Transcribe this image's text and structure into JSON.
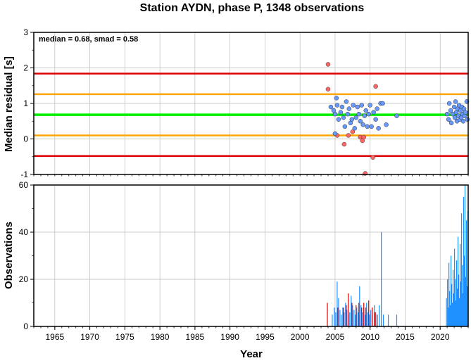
{
  "title": "Station AYDN, phase P, 1348 observations",
  "colors": {
    "median_line": "#00ee00",
    "inner_band": "#ffa500",
    "outer_band": "#dd0000",
    "point_inside": "#6699ff",
    "point_outside": "#ff6666",
    "bar_inside": "#1e90ff",
    "bar_outside": "#dd0000",
    "grid": "#bbbbbb"
  },
  "chart_data": [
    {
      "type": "scatter",
      "title": "Station AYDN, phase P, 1348 observations",
      "annotation": "median = 0.68, smad = 0.58",
      "xlabel": "",
      "ylabel": "Median residual [s]",
      "xlim": [
        1962,
        2024
      ],
      "ylim": [
        -1,
        3
      ],
      "yticks": [
        "-1",
        "0",
        "1",
        "2",
        "3"
      ],
      "grid": true,
      "lines": {
        "median": 0.68,
        "inner_lower": 0.1,
        "inner_upper": 1.26,
        "outer_lower": -0.48,
        "outer_upper": 1.84
      },
      "points_inside": [
        [
          2004.4,
          0.9
        ],
        [
          2004.8,
          0.8
        ],
        [
          2005.0,
          0.7
        ],
        [
          2005.2,
          1.15
        ],
        [
          2005.3,
          0.95
        ],
        [
          2005.5,
          0.55
        ],
        [
          2005.8,
          0.75
        ],
        [
          2006.0,
          0.9
        ],
        [
          2006.2,
          0.6
        ],
        [
          2006.4,
          0.35
        ],
        [
          2006.6,
          1.05
        ],
        [
          2006.8,
          0.7
        ],
        [
          2007.0,
          0.85
        ],
        [
          2007.2,
          0.45
        ],
        [
          2007.4,
          0.55
        ],
        [
          2007.6,
          0.95
        ],
        [
          2007.8,
          0.3
        ],
        [
          2008.0,
          0.6
        ],
        [
          2008.2,
          0.9
        ],
        [
          2008.4,
          0.7
        ],
        [
          2008.6,
          0.5
        ],
        [
          2008.8,
          0.95
        ],
        [
          2009.0,
          0.4
        ],
        [
          2009.2,
          0.65
        ],
        [
          2009.4,
          0.8
        ],
        [
          2009.6,
          0.35
        ],
        [
          2009.8,
          0.7
        ],
        [
          2010.0,
          0.95
        ],
        [
          2010.2,
          0.35
        ],
        [
          2010.5,
          0.75
        ],
        [
          2010.8,
          0.55
        ],
        [
          2011.0,
          0.85
        ],
        [
          2011.2,
          0.3
        ],
        [
          2011.5,
          1.0
        ],
        [
          2011.8,
          1.0
        ],
        [
          2012.3,
          0.4
        ],
        [
          2013.8,
          0.65
        ],
        [
          2005.0,
          0.15
        ],
        [
          2021.0,
          0.7
        ],
        [
          2021.2,
          0.55
        ],
        [
          2021.3,
          1.0
        ],
        [
          2021.5,
          0.8
        ],
        [
          2021.6,
          0.45
        ],
        [
          2021.8,
          0.7
        ],
        [
          2022.0,
          0.9
        ],
        [
          2022.1,
          0.6
        ],
        [
          2022.2,
          1.05
        ],
        [
          2022.3,
          0.75
        ],
        [
          2022.4,
          0.5
        ],
        [
          2022.5,
          0.85
        ],
        [
          2022.6,
          0.65
        ],
        [
          2022.7,
          0.95
        ],
        [
          2022.8,
          0.55
        ],
        [
          2022.9,
          0.8
        ],
        [
          2023.0,
          0.6
        ],
        [
          2023.1,
          0.9
        ],
        [
          2023.2,
          0.7
        ],
        [
          2023.3,
          0.5
        ],
        [
          2023.4,
          0.85
        ],
        [
          2023.5,
          0.65
        ],
        [
          2023.6,
          0.75
        ],
        [
          2023.8,
          1.05
        ],
        [
          2023.9,
          0.55
        ]
      ],
      "points_outside": [
        [
          2004.0,
          2.1
        ],
        [
          2004.0,
          1.4
        ],
        [
          2005.3,
          0.1
        ],
        [
          2006.3,
          -0.15
        ],
        [
          2006.9,
          0.1
        ],
        [
          2007.5,
          0.2
        ],
        [
          2008.6,
          0.05
        ],
        [
          2008.9,
          -0.05
        ],
        [
          2009.1,
          0.05
        ],
        [
          2009.3,
          -0.97
        ],
        [
          2010.4,
          -0.52
        ],
        [
          2010.8,
          1.48
        ]
      ]
    },
    {
      "type": "bar",
      "xlabel": "Year",
      "ylabel": "Observations",
      "xlim": [
        1962,
        2024
      ],
      "ylim": [
        0,
        60
      ],
      "xticks": [
        "1965",
        "1970",
        "1975",
        "1980",
        "1985",
        "1990",
        "1995",
        "2000",
        "2005",
        "2010",
        "2015",
        "2020"
      ],
      "yticks": [
        "0",
        "20",
        "40",
        "60"
      ],
      "grid": true,
      "bars_inside": [
        [
          2004.6,
          5
        ],
        [
          2004.9,
          8
        ],
        [
          2005.1,
          6
        ],
        [
          2005.3,
          19
        ],
        [
          2005.5,
          12
        ],
        [
          2005.7,
          7
        ],
        [
          2005.9,
          5
        ],
        [
          2006.1,
          8
        ],
        [
          2006.3,
          6
        ],
        [
          2006.5,
          10
        ],
        [
          2006.7,
          7
        ],
        [
          2006.9,
          5
        ],
        [
          2007.1,
          6
        ],
        [
          2007.3,
          13
        ],
        [
          2007.5,
          9
        ],
        [
          2007.7,
          7
        ],
        [
          2007.9,
          5
        ],
        [
          2008.1,
          8
        ],
        [
          2008.3,
          6
        ],
        [
          2008.5,
          17
        ],
        [
          2008.7,
          9
        ],
        [
          2008.9,
          6
        ],
        [
          2009.1,
          8
        ],
        [
          2009.3,
          5
        ],
        [
          2009.5,
          10
        ],
        [
          2009.7,
          6
        ],
        [
          2009.9,
          5
        ],
        [
          2010.1,
          7
        ],
        [
          2010.3,
          5
        ],
        [
          2010.6,
          9
        ],
        [
          2010.8,
          6
        ],
        [
          2011.0,
          5
        ],
        [
          2011.3,
          9
        ],
        [
          2011.6,
          40
        ],
        [
          2011.9,
          5
        ],
        [
          2012.6,
          5
        ],
        [
          2013.8,
          5
        ],
        [
          2020.9,
          12
        ],
        [
          2021.05,
          20
        ],
        [
          2021.15,
          8
        ],
        [
          2021.25,
          27
        ],
        [
          2021.35,
          15
        ],
        [
          2021.45,
          9
        ],
        [
          2021.55,
          30
        ],
        [
          2021.65,
          18
        ],
        [
          2021.75,
          10
        ],
        [
          2021.85,
          24
        ],
        [
          2021.95,
          14
        ],
        [
          2022.05,
          33
        ],
        [
          2022.15,
          20
        ],
        [
          2022.25,
          11
        ],
        [
          2022.35,
          28
        ],
        [
          2022.45,
          16
        ],
        [
          2022.55,
          38
        ],
        [
          2022.65,
          22
        ],
        [
          2022.75,
          12
        ],
        [
          2022.85,
          35
        ],
        [
          2022.95,
          19
        ],
        [
          2023.05,
          48
        ],
        [
          2023.15,
          26
        ],
        [
          2023.25,
          14
        ],
        [
          2023.35,
          55
        ],
        [
          2023.45,
          30
        ],
        [
          2023.55,
          60
        ],
        [
          2023.65,
          21
        ],
        [
          2023.75,
          45
        ],
        [
          2023.85,
          17
        ],
        [
          2023.95,
          49
        ]
      ],
      "bars_outside": [
        [
          2003.9,
          10
        ],
        [
          2005.4,
          8
        ],
        [
          2006.2,
          8
        ],
        [
          2006.6,
          9
        ],
        [
          2006.9,
          14
        ],
        [
          2007.4,
          10
        ],
        [
          2008.0,
          9
        ],
        [
          2008.4,
          10
        ],
        [
          2008.8,
          8
        ],
        [
          2009.1,
          10
        ],
        [
          2009.4,
          8
        ],
        [
          2009.8,
          11
        ],
        [
          2010.3,
          8
        ],
        [
          2010.7,
          6
        ],
        [
          2011.0,
          5
        ]
      ]
    }
  ]
}
